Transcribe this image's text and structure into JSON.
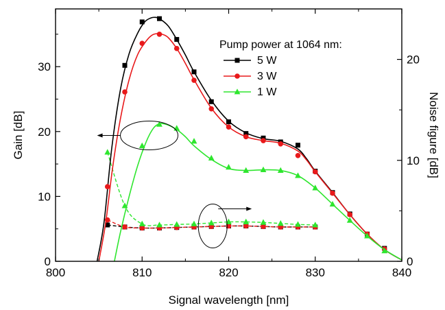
{
  "chart_data": {
    "type": "line",
    "title": "",
    "xlabel": "Signal wavelength [nm]",
    "ylabel": "Gain [dB]",
    "y2label": "Noise figure [dB]",
    "xlim": [
      800,
      840
    ],
    "ylim": [
      0,
      38.9
    ],
    "y2lim": [
      0,
      25
    ],
    "xticks": [
      "800",
      "810",
      "820",
      "830",
      "840"
    ],
    "yticks": [
      "0",
      "10",
      "20",
      "30"
    ],
    "y2ticks": [
      "0",
      "10",
      "20"
    ],
    "legend_title": "Pump power at 1064 nm:",
    "legend_position": "top-right",
    "grid": false,
    "series": [
      {
        "name": "5 W",
        "color": "#000000",
        "marker": "square",
        "axis": "left",
        "curve_x": [
          804.8,
          805.6,
          806.5,
          807.5,
          808.5,
          809.5,
          810.3,
          811.0,
          811.5,
          812.0,
          813.0,
          814.0,
          815.0,
          816.0,
          818.0,
          820.0,
          822.0,
          824.0,
          826.0,
          828.0,
          829.0,
          830.0,
          832.0,
          834.0,
          836.0,
          838.0,
          840.0
        ],
        "curve_y": [
          0.0,
          6.0,
          17.5,
          26.5,
          32.0,
          35.2,
          36.9,
          37.5,
          37.6,
          37.4,
          36.3,
          34.2,
          31.8,
          29.2,
          24.8,
          21.6,
          19.8,
          18.9,
          18.5,
          17.3,
          15.8,
          13.9,
          10.6,
          7.2,
          4.2,
          1.8,
          0.2
        ],
        "marker_x": [
          808,
          810,
          812,
          814,
          816,
          818,
          820,
          822,
          824,
          826,
          828,
          830,
          832,
          834,
          836,
          838
        ],
        "marker_y": [
          30.2,
          36.9,
          37.4,
          34.2,
          29.2,
          24.6,
          21.5,
          19.7,
          19.0,
          18.4,
          17.9,
          13.9,
          10.6,
          7.3,
          4.2,
          2.0
        ]
      },
      {
        "name": "3 W",
        "color": "#e8191b",
        "marker": "circle",
        "axis": "left",
        "curve_x": [
          805.0,
          805.8,
          806.6,
          807.5,
          808.5,
          809.5,
          810.5,
          811.2,
          811.8,
          812.3,
          813.0,
          814.0,
          815.0,
          816.0,
          818.0,
          820.0,
          822.0,
          824.0,
          826.0,
          828.0,
          829.0,
          830.0,
          832.0,
          834.0,
          836.0,
          838.0,
          840.0
        ],
        "curve_y": [
          0.0,
          6.0,
          14.5,
          22.0,
          28.0,
          31.9,
          34.0,
          34.9,
          35.1,
          35.0,
          34.5,
          32.8,
          30.5,
          28.0,
          23.6,
          20.7,
          19.2,
          18.6,
          18.2,
          17.0,
          15.6,
          13.8,
          10.5,
          7.2,
          4.2,
          1.8,
          0.2
        ],
        "marker_x": [
          806,
          808,
          810,
          812,
          814,
          816,
          818,
          820,
          822,
          824,
          826,
          828,
          830,
          832,
          834,
          836,
          838
        ],
        "marker_y": [
          11.5,
          26.1,
          33.6,
          35.0,
          32.8,
          27.9,
          23.5,
          20.7,
          19.2,
          18.6,
          18.1,
          16.3,
          13.8,
          10.5,
          7.2,
          4.2,
          1.9
        ]
      },
      {
        "name": "1 W",
        "color": "#2ee62e",
        "marker": "triangle",
        "axis": "left",
        "curve_x": [
          806.8,
          807.5,
          808.5,
          809.5,
          810.5,
          811.3,
          812.0,
          812.8,
          814.0,
          815.0,
          816.0,
          818.0,
          820.0,
          822.0,
          824.0,
          826.0,
          828.0,
          830.0,
          832.0,
          834.0,
          836.0,
          838.0,
          840.0
        ],
        "curve_y": [
          0.0,
          4.5,
          10.0,
          14.8,
          18.5,
          20.5,
          21.2,
          21.1,
          20.3,
          19.2,
          17.8,
          15.7,
          14.3,
          14.0,
          14.1,
          14.0,
          13.2,
          11.3,
          8.8,
          6.3,
          3.9,
          1.8,
          0.2
        ],
        "marker_x": [
          810,
          812,
          814,
          816,
          818,
          820,
          822,
          824,
          826,
          828,
          830,
          832,
          834,
          836,
          838
        ],
        "marker_y": [
          17.8,
          21.1,
          20.5,
          18.5,
          15.9,
          14.5,
          14.0,
          14.1,
          14.0,
          13.2,
          11.3,
          8.8,
          6.3,
          3.9,
          1.6
        ]
      }
    ],
    "noise_figure_series": [
      {
        "name": "5 W",
        "color": "#000000",
        "marker": "square",
        "axis": "right",
        "x": [
          806,
          808,
          810,
          812,
          814,
          816,
          818,
          820,
          822,
          824,
          826,
          828,
          830
        ],
        "y": [
          3.6,
          3.4,
          3.3,
          3.3,
          3.35,
          3.4,
          3.45,
          3.5,
          3.5,
          3.45,
          3.4,
          3.4,
          3.4
        ]
      },
      {
        "name": "3 W",
        "color": "#e8191b",
        "marker": "circle",
        "axis": "right",
        "x": [
          806,
          808,
          810,
          812,
          814,
          816,
          818,
          820,
          822,
          824,
          826,
          828,
          830
        ],
        "y": [
          4.1,
          3.4,
          3.3,
          3.3,
          3.35,
          3.4,
          3.45,
          3.5,
          3.5,
          3.45,
          3.4,
          3.4,
          3.4
        ]
      },
      {
        "name": "1 W",
        "color": "#2ee62e",
        "marker": "triangle",
        "axis": "right",
        "x": [
          806,
          808,
          810,
          812,
          814,
          816,
          818,
          820,
          822,
          824,
          826,
          828,
          830
        ],
        "y": [
          10.8,
          5.5,
          3.7,
          3.6,
          3.65,
          3.7,
          3.8,
          3.9,
          3.9,
          3.85,
          3.75,
          3.65,
          3.6
        ]
      }
    ],
    "annotations": [
      {
        "type": "ellipse-arrow",
        "axis": "left",
        "points_to": "left",
        "x": 810.5,
        "y": 19.4
      },
      {
        "type": "ellipse-arrow",
        "axis": "right",
        "points_to": "right",
        "x": 818.0,
        "y": 3.5
      }
    ]
  }
}
